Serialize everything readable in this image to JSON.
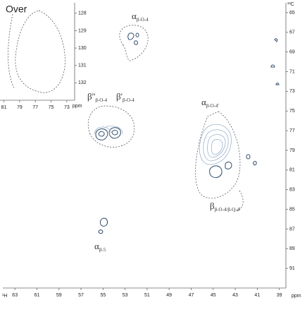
{
  "chart_data": [
    {
      "type": "contour",
      "x_label": "¹H",
      "y_label": "¹³C",
      "unit": "ppm",
      "xlim": [
        64.1,
        38.4
      ],
      "xticks": [
        63,
        61,
        59,
        57,
        55,
        53,
        51,
        49,
        47,
        45,
        43,
        41,
        39
      ],
      "ylim": [
        64,
        93
      ],
      "yticks": [
        65,
        67,
        69,
        71,
        73,
        75,
        77,
        79,
        81,
        83,
        85,
        87,
        89,
        91
      ],
      "annotations": [
        {
          "main": "α",
          "sub": "β-O-4"
        },
        {
          "main": "α",
          "sub": "β-O-4'"
        },
        {
          "main": "β''",
          "sub": "β-O-4"
        },
        {
          "main": "β'",
          "sub": "β-O-4"
        },
        {
          "main": "α",
          "sub": "β-5"
        },
        {
          "main": "β",
          "sub": "β-O-4/β-O-4'"
        }
      ]
    },
    {
      "type": "contour",
      "title": "Over",
      "x_label": "ppm",
      "xlim": [
        81.5,
        72
      ],
      "xticks": [
        81,
        79,
        77,
        75,
        73
      ],
      "ylim": [
        127.4,
        133
      ],
      "yticks": [
        128,
        129,
        130,
        131,
        132
      ]
    }
  ]
}
